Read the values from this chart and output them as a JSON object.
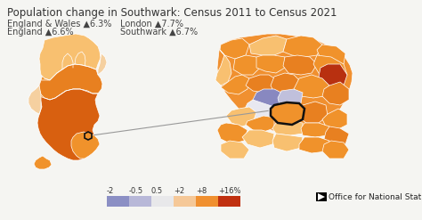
{
  "title": "Population change in Southwark: Census 2011 to Census 2021",
  "stat_line1_left": "England & Wales ▲6.3%",
  "stat_line2_left": "England ▲6.6%",
  "stat_line1_right": "London ▲7.7%",
  "stat_line2_right": "Southwark ▲6.7%",
  "colorbar_colors": [
    "#8b8fc4",
    "#b8b8d8",
    "#e8e8ea",
    "#f5c898",
    "#f09030",
    "#c03010"
  ],
  "colorbar_labels": [
    "-2",
    "-0.5",
    "0.5",
    "+2",
    "+8",
    "+16%"
  ],
  "ons_text": "Office for National Statistics",
  "background_color": "#f5f5f2",
  "title_color": "#333333",
  "stats_color": "#444444",
  "title_fontsize": 8.5,
  "stats_fontsize": 7.0,
  "legend_fontsize": 6.0,
  "ons_fontsize": 6.5,
  "england_base": "#f0922b",
  "england_north_light": "#f8c070",
  "england_midlands": "#e88020",
  "england_south_dark": "#d86010",
  "england_southeast": "#e07018",
  "england_pale": "#f5d0a0",
  "london_orange_med": "#f09030",
  "london_orange_dark": "#d06010",
  "london_darkred": "#b83010",
  "london_blue1": "#8888c0",
  "london_blue2": "#c0c0dc",
  "london_nearwhite": "#e8e8f0",
  "border_color": "#ffffff",
  "southwark_border": "#111111",
  "arrow_color": "#999999"
}
